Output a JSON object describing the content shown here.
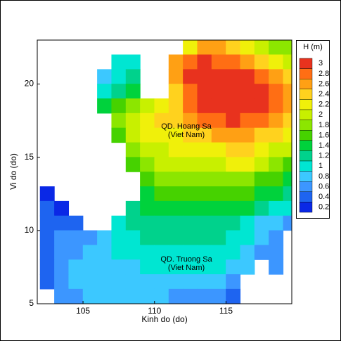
{
  "chart_data": {
    "type": "heatmap",
    "xlabel": "Kinh do (do)",
    "ylabel": "Vi do (do)",
    "xlim": [
      101.8,
      119.6
    ],
    "ylim": [
      5,
      23
    ],
    "xticks": [
      105,
      110,
      115
    ],
    "yticks": [
      5,
      10,
      15,
      20
    ],
    "lons": [
      102.5,
      103.5,
      104.5,
      105.5,
      106.5,
      107.5,
      108.5,
      109.5,
      110.5,
      111.5,
      112.5,
      113.5,
      114.5,
      115.5,
      116.5,
      117.5,
      118.5,
      119.5
    ],
    "lats": [
      22.5,
      21.5,
      20.5,
      19.5,
      18.5,
      17.5,
      16.5,
      15.5,
      14.5,
      13.5,
      12.5,
      11.5,
      10.5,
      9.5,
      8.5,
      7.5,
      6.5,
      5.5
    ],
    "values": [
      [
        null,
        null,
        null,
        null,
        null,
        null,
        null,
        null,
        null,
        null,
        2.2,
        2.6,
        2.6,
        2.4,
        2.2,
        2.0,
        1.8,
        1.8
      ],
      [
        null,
        null,
        null,
        null,
        null,
        1.0,
        1.0,
        null,
        null,
        2.6,
        2.8,
        3.0,
        2.8,
        2.8,
        2.6,
        2.4,
        2.2,
        2.0
      ],
      [
        null,
        null,
        null,
        null,
        0.8,
        1.0,
        1.2,
        null,
        null,
        2.6,
        3.0,
        3.0,
        3.0,
        3.0,
        3.0,
        2.8,
        2.6,
        2.4
      ],
      [
        null,
        null,
        null,
        null,
        1.0,
        1.2,
        1.4,
        null,
        null,
        2.4,
        2.8,
        3.0,
        3.0,
        3.0,
        3.0,
        3.0,
        2.8,
        2.6
      ],
      [
        null,
        null,
        null,
        null,
        1.4,
        1.6,
        1.8,
        2.0,
        2.2,
        2.4,
        2.8,
        3.0,
        3.0,
        3.0,
        3.0,
        3.0,
        2.8,
        2.6
      ],
      [
        null,
        null,
        null,
        null,
        null,
        1.8,
        2.0,
        2.2,
        2.4,
        2.4,
        2.6,
        2.8,
        2.8,
        3.0,
        2.8,
        2.8,
        2.6,
        2.4
      ],
      [
        null,
        null,
        null,
        null,
        null,
        1.6,
        2.0,
        2.2,
        2.2,
        2.2,
        2.4,
        2.4,
        2.6,
        2.6,
        2.6,
        2.4,
        2.4,
        2.2
      ],
      [
        null,
        null,
        null,
        null,
        null,
        null,
        1.8,
        2.0,
        2.0,
        2.2,
        2.2,
        2.2,
        2.2,
        2.4,
        2.4,
        2.2,
        2.0,
        2.0
      ],
      [
        null,
        null,
        null,
        null,
        null,
        null,
        1.6,
        1.8,
        2.0,
        2.0,
        2.0,
        2.0,
        2.0,
        2.2,
        2.2,
        2.0,
        1.8,
        1.6
      ],
      [
        null,
        null,
        null,
        null,
        null,
        null,
        null,
        1.6,
        1.8,
        1.8,
        1.8,
        1.8,
        1.8,
        1.8,
        1.8,
        1.6,
        1.6,
        1.4
      ],
      [
        0.2,
        null,
        null,
        null,
        null,
        null,
        null,
        1.4,
        1.6,
        1.6,
        1.6,
        1.6,
        1.6,
        1.6,
        1.6,
        1.4,
        1.4,
        1.2
      ],
      [
        0.4,
        0.2,
        null,
        null,
        null,
        null,
        1.2,
        1.4,
        1.4,
        1.4,
        1.4,
        1.4,
        1.4,
        1.4,
        1.4,
        1.2,
        1.0,
        1.0
      ],
      [
        0.4,
        0.4,
        0.4,
        null,
        null,
        1.0,
        1.2,
        1.2,
        1.2,
        1.2,
        1.2,
        1.2,
        1.2,
        1.2,
        1.0,
        0.8,
        0.8,
        0.6
      ],
      [
        0.4,
        0.6,
        0.6,
        0.6,
        0.8,
        1.0,
        1.0,
        1.2,
        1.2,
        1.2,
        1.2,
        1.2,
        1.2,
        1.0,
        1.0,
        0.8,
        0.6,
        null
      ],
      [
        0.4,
        0.6,
        0.6,
        0.8,
        0.8,
        1.0,
        1.0,
        1.0,
        1.0,
        1.0,
        1.0,
        1.0,
        1.0,
        1.0,
        0.8,
        0.6,
        0.6,
        null
      ],
      [
        0.4,
        0.6,
        0.8,
        0.8,
        0.8,
        0.8,
        0.8,
        1.0,
        1.0,
        1.0,
        1.0,
        1.0,
        1.0,
        0.8,
        0.8,
        null,
        0.6,
        null
      ],
      [
        0.4,
        0.6,
        0.8,
        0.8,
        0.8,
        0.8,
        0.8,
        0.8,
        0.8,
        0.8,
        0.8,
        0.8,
        0.8,
        0.6,
        null,
        null,
        null,
        null
      ],
      [
        null,
        0.6,
        0.6,
        0.8,
        0.8,
        0.8,
        0.8,
        0.8,
        0.8,
        0.6,
        0.6,
        0.6,
        0.6,
        0.4,
        null,
        null,
        null,
        null
      ]
    ],
    "colorbar": {
      "title": "H  (m)",
      "levels": [
        3,
        2.8,
        2.6,
        2.4,
        2.2,
        2,
        1.8,
        1.6,
        1.4,
        1.2,
        1,
        0.8,
        0.6,
        0.4,
        0.2
      ],
      "colors": [
        "#e8321e",
        "#ff6e14",
        "#ffa014",
        "#ffd21e",
        "#f0f00a",
        "#c8f000",
        "#8ce600",
        "#46d200",
        "#00d23c",
        "#00d28c",
        "#00e6d2",
        "#3cc8ff",
        "#3c96ff",
        "#1e64f0",
        "#0a28e6"
      ]
    },
    "annotations": [
      "QD. Hoang Sa",
      "(Viet Nam)",
      "QD. Truong Sa",
      "(Viet Nam)"
    ]
  }
}
